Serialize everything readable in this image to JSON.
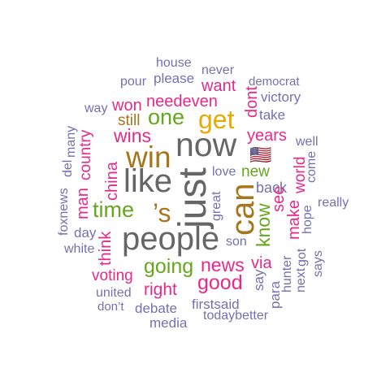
{
  "palette": {
    "purple": "#7570b3",
    "pink": "#e7298a",
    "green": "#66a61e",
    "gold": "#e6ab02",
    "brown": "#a6761d",
    "gray": "#666666"
  },
  "words": [
    {
      "id": "house",
      "text": "house"
    },
    {
      "id": "never",
      "text": "never"
    },
    {
      "id": "pour",
      "text": "pour"
    },
    {
      "id": "please",
      "text": "please"
    },
    {
      "id": "democrat",
      "text": "democrat"
    },
    {
      "id": "want",
      "text": "want"
    },
    {
      "id": "victory",
      "text": "victory"
    },
    {
      "id": "way",
      "text": "way"
    },
    {
      "id": "won",
      "text": "won"
    },
    {
      "id": "needeven",
      "text": "needeven"
    },
    {
      "id": "dont",
      "text": "dont"
    },
    {
      "id": "take",
      "text": "take"
    },
    {
      "id": "one",
      "text": "one"
    },
    {
      "id": "get",
      "text": "get"
    },
    {
      "id": "still",
      "text": "still"
    },
    {
      "id": "many",
      "text": "many"
    },
    {
      "id": "country",
      "text": "country"
    },
    {
      "id": "wins",
      "text": "wins"
    },
    {
      "id": "years",
      "text": "years"
    },
    {
      "id": "now",
      "text": "now"
    },
    {
      "id": "well",
      "text": "well"
    },
    {
      "id": "win",
      "text": "win"
    },
    {
      "id": "flag",
      "text": "🇺🇸"
    },
    {
      "id": "del",
      "text": "del"
    },
    {
      "id": "china",
      "text": "china"
    },
    {
      "id": "love",
      "text": "love"
    },
    {
      "id": "new",
      "text": "new"
    },
    {
      "id": "world",
      "text": "world"
    },
    {
      "id": "come",
      "text": "come"
    },
    {
      "id": "like",
      "text": "like"
    },
    {
      "id": "just",
      "text": "just"
    },
    {
      "id": "foxnews",
      "text": "foxnews"
    },
    {
      "id": "back",
      "text": "back"
    },
    {
      "id": "great",
      "text": "great"
    },
    {
      "id": "can",
      "text": "can"
    },
    {
      "id": "man",
      "text": "man"
    },
    {
      "id": "time",
      "text": "time"
    },
    {
      "id": "s",
      "text": "’s"
    },
    {
      "id": "see",
      "text": "see"
    },
    {
      "id": "really",
      "text": "really"
    },
    {
      "id": "know",
      "text": "know"
    },
    {
      "id": "make",
      "text": "make"
    },
    {
      "id": "hope",
      "text": "hope"
    },
    {
      "id": "day",
      "text": "day"
    },
    {
      "id": "people",
      "text": "people"
    },
    {
      "id": "white",
      "text": "white"
    },
    {
      "id": "think",
      "text": "think"
    },
    {
      "id": "son",
      "text": "son"
    },
    {
      "id": "says",
      "text": "says"
    },
    {
      "id": "going",
      "text": "going"
    },
    {
      "id": "news",
      "text": "news"
    },
    {
      "id": "via",
      "text": "via"
    },
    {
      "id": "hunter",
      "text": "hunter"
    },
    {
      "id": "got",
      "text": "got"
    },
    {
      "id": "next",
      "text": "next"
    },
    {
      "id": "voting",
      "text": "voting"
    },
    {
      "id": "good",
      "text": "good"
    },
    {
      "id": "say",
      "text": "say"
    },
    {
      "id": "para",
      "text": "para"
    },
    {
      "id": "right",
      "text": "right"
    },
    {
      "id": "united",
      "text": "united"
    },
    {
      "id": "firstsaid",
      "text": "firstsaid"
    },
    {
      "id": "dont2",
      "text": "don’t"
    },
    {
      "id": "debate",
      "text": "debate"
    },
    {
      "id": "todaybetter",
      "text": "todaybetter"
    },
    {
      "id": "media",
      "text": "media"
    }
  ]
}
